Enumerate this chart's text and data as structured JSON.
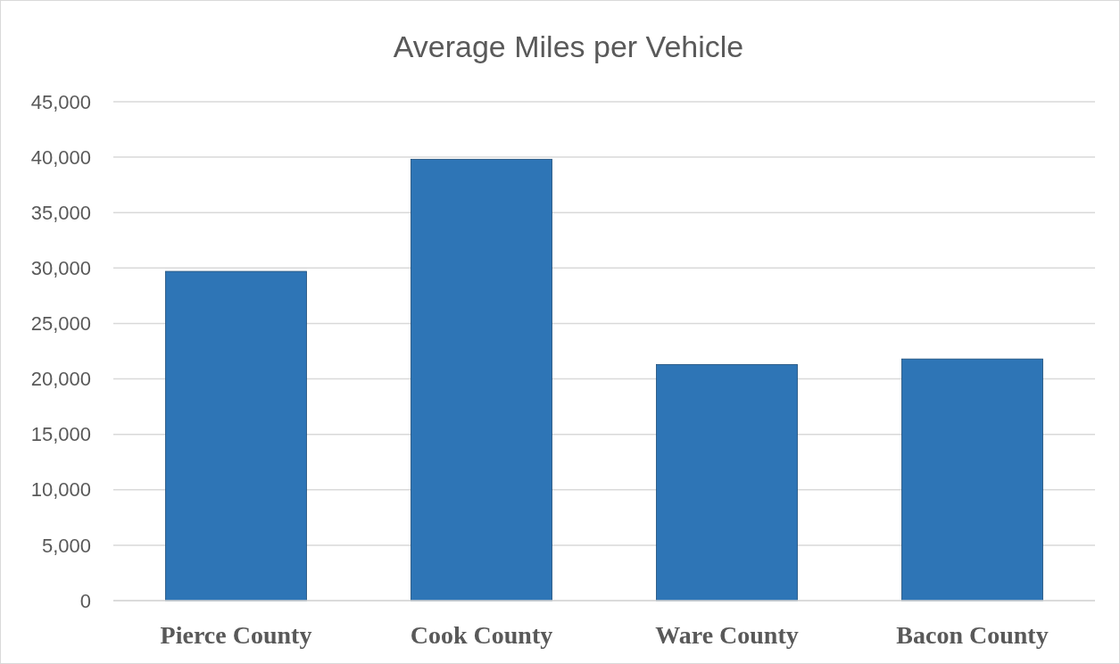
{
  "chart_data": {
    "type": "bar",
    "title": "Average Miles per Vehicle",
    "categories": [
      "Pierce County",
      "Cook County",
      "Ware County",
      "Bacon County"
    ],
    "values": [
      29700,
      39800,
      21300,
      21800
    ],
    "color": "#2e75b6",
    "ylim": [
      0,
      45000
    ],
    "yticks": [
      {
        "value": 0,
        "label": "0"
      },
      {
        "value": 5000,
        "label": "5,000"
      },
      {
        "value": 10000,
        "label": "10,000"
      },
      {
        "value": 15000,
        "label": "15,000"
      },
      {
        "value": 20000,
        "label": "20,000"
      },
      {
        "value": 25000,
        "label": "25,000"
      },
      {
        "value": 30000,
        "label": "30,000"
      },
      {
        "value": 35000,
        "label": "35,000"
      },
      {
        "value": 40000,
        "label": "40,000"
      },
      {
        "value": 45000,
        "label": "45,000"
      }
    ],
    "grid": "y"
  }
}
